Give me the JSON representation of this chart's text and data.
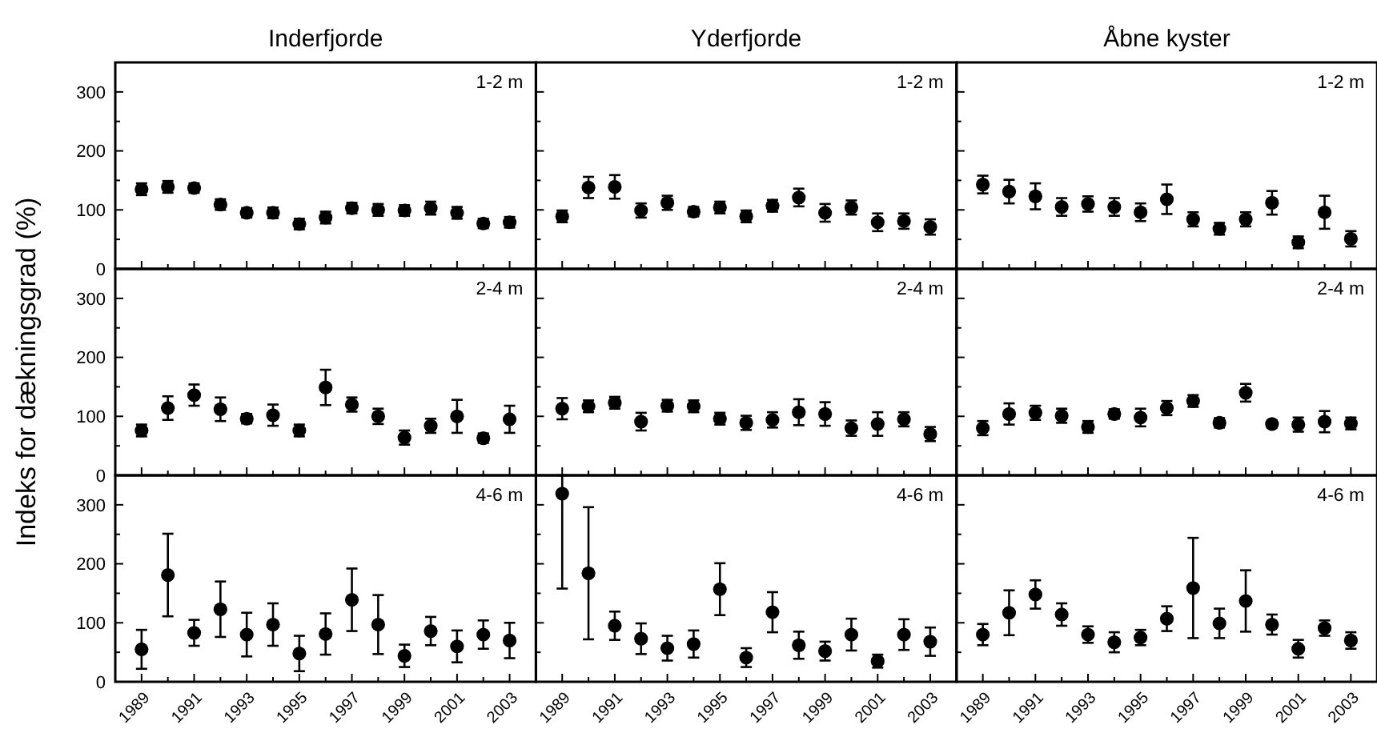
{
  "chart_data": [
    {
      "type": "scatter",
      "title": "Inderfjorde",
      "annotations": [
        "1-2 m"
      ],
      "x": [
        1989,
        1990,
        1991,
        1992,
        1993,
        1994,
        1995,
        1996,
        1997,
        1998,
        1999,
        2000,
        2001,
        2002,
        2003
      ],
      "color": "#000000",
      "marker": "circle",
      "tick_labels": "y",
      "values": [
        135,
        139,
        137,
        109,
        95,
        95,
        76,
        87,
        103,
        100,
        99,
        103,
        95,
        77,
        79
      ],
      "errors": [
        10,
        10,
        8,
        9,
        8,
        9,
        9,
        10,
        9,
        10,
        9,
        11,
        10,
        8,
        9
      ],
      "xlim": [
        1988,
        2004
      ],
      "xticks": [
        1989,
        {
          "value": 1990,
          "label": null
        },
        1991,
        {
          "value": 1992,
          "label": null
        },
        1993,
        {
          "value": 1994,
          "label": null
        },
        1995,
        {
          "value": 1996,
          "label": null
        },
        1997,
        {
          "value": 1998,
          "label": null
        },
        1999,
        {
          "value": 2000,
          "label": null
        },
        2001,
        {
          "value": 2002,
          "label": null
        },
        2003
      ],
      "ylim": [
        0,
        350
      ],
      "yticks": [
        0,
        {
          "value": 50,
          "label": null
        },
        100,
        {
          "value": 150,
          "label": null
        },
        200,
        {
          "value": 250,
          "label": null
        },
        300
      ]
    },
    {
      "type": "scatter",
      "title": "Yderfjorde",
      "annotations": [
        "1-2 m"
      ],
      "x": [
        1989,
        1990,
        1991,
        1992,
        1993,
        1994,
        1995,
        1996,
        1997,
        1998,
        1999,
        2000,
        2001,
        2002,
        2003
      ],
      "color": "#000000",
      "marker": "circle",
      "tick_labels": false,
      "values": [
        89,
        138,
        139,
        99,
        112,
        97,
        104,
        89,
        107,
        121,
        95,
        104,
        79,
        81,
        71
      ],
      "errors": [
        10,
        18,
        20,
        12,
        12,
        8,
        10,
        10,
        10,
        15,
        15,
        12,
        15,
        13,
        13
      ],
      "xlim": [
        1988,
        2004
      ],
      "xticks": [
        1989,
        {
          "value": 1990,
          "label": null
        },
        1991,
        {
          "value": 1992,
          "label": null
        },
        1993,
        {
          "value": 1994,
          "label": null
        },
        1995,
        {
          "value": 1996,
          "label": null
        },
        1997,
        {
          "value": 1998,
          "label": null
        },
        1999,
        {
          "value": 2000,
          "label": null
        },
        2001,
        {
          "value": 2002,
          "label": null
        },
        2003
      ],
      "ylim": [
        0,
        350
      ],
      "yticks": [
        0,
        {
          "value": 50,
          "label": null
        },
        100,
        {
          "value": 150,
          "label": null
        },
        200,
        {
          "value": 250,
          "label": null
        },
        300
      ]
    },
    {
      "type": "scatter",
      "title": "Åbne kyster",
      "annotations": [
        "1-2 m"
      ],
      "x": [
        1989,
        1990,
        1991,
        1992,
        1993,
        1994,
        1995,
        1996,
        1997,
        1998,
        1999,
        2000,
        2001,
        2002,
        2003
      ],
      "color": "#000000",
      "marker": "circle",
      "tick_labels": false,
      "values": [
        143,
        131,
        123,
        105,
        110,
        105,
        96,
        118,
        84,
        68,
        84,
        112,
        45,
        96,
        51
      ],
      "errors": [
        15,
        20,
        22,
        15,
        13,
        15,
        15,
        25,
        12,
        10,
        12,
        20,
        10,
        28,
        13
      ],
      "xlim": [
        1988,
        2004
      ],
      "xticks": [
        1989,
        {
          "value": 1990,
          "label": null
        },
        1991,
        {
          "value": 1992,
          "label": null
        },
        1993,
        {
          "value": 1994,
          "label": null
        },
        1995,
        {
          "value": 1996,
          "label": null
        },
        1997,
        {
          "value": 1998,
          "label": null
        },
        1999,
        {
          "value": 2000,
          "label": null
        },
        2001,
        {
          "value": 2002,
          "label": null
        },
        2003
      ],
      "ylim": [
        0,
        350
      ],
      "yticks": [
        0,
        {
          "value": 50,
          "label": null
        },
        100,
        {
          "value": 150,
          "label": null
        },
        200,
        {
          "value": 250,
          "label": null
        },
        300
      ]
    },
    {
      "type": "scatter",
      "annotations": [
        "2-4 m"
      ],
      "ylabel": "Indeks for dækningsgrad (%)",
      "x": [
        1989,
        1990,
        1991,
        1992,
        1993,
        1994,
        1995,
        1996,
        1997,
        1998,
        1999,
        2000,
        2001,
        2002,
        2003
      ],
      "color": "#000000",
      "marker": "circle",
      "tick_labels": "y",
      "values": [
        76,
        114,
        136,
        112,
        96,
        102,
        76,
        149,
        120,
        100,
        64,
        84,
        100,
        63,
        95
      ],
      "errors": [
        10,
        20,
        18,
        20,
        8,
        18,
        10,
        30,
        12,
        13,
        12,
        12,
        28,
        8,
        23
      ],
      "xlim": [
        1988,
        2004
      ],
      "xticks": [
        1989,
        {
          "value": 1990,
          "label": null
        },
        1991,
        {
          "value": 1992,
          "label": null
        },
        1993,
        {
          "value": 1994,
          "label": null
        },
        1995,
        {
          "value": 1996,
          "label": null
        },
        1997,
        {
          "value": 1998,
          "label": null
        },
        1999,
        {
          "value": 2000,
          "label": null
        },
        2001,
        {
          "value": 2002,
          "label": null
        },
        2003
      ],
      "ylim": [
        0,
        350
      ],
      "yticks": [
        0,
        {
          "value": 50,
          "label": null
        },
        100,
        {
          "value": 150,
          "label": null
        },
        200,
        {
          "value": 250,
          "label": null
        },
        300
      ]
    },
    {
      "type": "scatter",
      "annotations": [
        "2-4 m"
      ],
      "x": [
        1989,
        1990,
        1991,
        1992,
        1993,
        1994,
        1995,
        1996,
        1997,
        1998,
        1999,
        2000,
        2001,
        2002,
        2003
      ],
      "color": "#000000",
      "marker": "circle",
      "tick_labels": false,
      "values": [
        113,
        117,
        123,
        91,
        118,
        117,
        96,
        89,
        94,
        107,
        104,
        80,
        87,
        95,
        70
      ],
      "errors": [
        18,
        10,
        10,
        15,
        10,
        10,
        10,
        12,
        13,
        22,
        20,
        13,
        20,
        12,
        12
      ],
      "xlim": [
        1988,
        2004
      ],
      "xticks": [
        1989,
        {
          "value": 1990,
          "label": null
        },
        1991,
        {
          "value": 1992,
          "label": null
        },
        1993,
        {
          "value": 1994,
          "label": null
        },
        1995,
        {
          "value": 1996,
          "label": null
        },
        1997,
        {
          "value": 1998,
          "label": null
        },
        1999,
        {
          "value": 2000,
          "label": null
        },
        2001,
        {
          "value": 2002,
          "label": null
        },
        2003
      ],
      "ylim": [
        0,
        350
      ],
      "yticks": [
        0,
        {
          "value": 50,
          "label": null
        },
        100,
        {
          "value": 150,
          "label": null
        },
        200,
        {
          "value": 250,
          "label": null
        },
        300
      ]
    },
    {
      "type": "scatter",
      "annotations": [
        "2-4 m"
      ],
      "x": [
        1989,
        1990,
        1991,
        1992,
        1993,
        1994,
        1995,
        1996,
        1997,
        1998,
        1999,
        2000,
        2001,
        2002,
        2003
      ],
      "color": "#000000",
      "marker": "circle",
      "tick_labels": false,
      "values": [
        80,
        104,
        106,
        101,
        82,
        104,
        98,
        114,
        126,
        89,
        140,
        87,
        86,
        91,
        88
      ],
      "errors": [
        12,
        18,
        12,
        12,
        10,
        8,
        15,
        12,
        10,
        8,
        15,
        6,
        12,
        18,
        10
      ],
      "xlim": [
        1988,
        2004
      ],
      "xticks": [
        1989,
        {
          "value": 1990,
          "label": null
        },
        1991,
        {
          "value": 1992,
          "label": null
        },
        1993,
        {
          "value": 1994,
          "label": null
        },
        1995,
        {
          "value": 1996,
          "label": null
        },
        1997,
        {
          "value": 1998,
          "label": null
        },
        1999,
        {
          "value": 2000,
          "label": null
        },
        2001,
        {
          "value": 2002,
          "label": null
        },
        2003
      ],
      "ylim": [
        0,
        350
      ],
      "yticks": [
        0,
        {
          "value": 50,
          "label": null
        },
        100,
        {
          "value": 150,
          "label": null
        },
        200,
        {
          "value": 250,
          "label": null
        },
        300
      ]
    },
    {
      "type": "scatter",
      "annotations": [
        "4-6 m"
      ],
      "x": [
        1989,
        1990,
        1991,
        1992,
        1993,
        1994,
        1995,
        1996,
        1997,
        1998,
        1999,
        2000,
        2001,
        2002,
        2003
      ],
      "color": "#000000",
      "marker": "circle",
      "values": [
        55,
        181,
        83,
        123,
        80,
        97,
        48,
        81,
        139,
        97,
        44,
        86,
        60,
        80,
        70
      ],
      "errors": [
        33,
        70,
        22,
        47,
        37,
        36,
        30,
        35,
        53,
        50,
        19,
        24,
        27,
        24,
        30
      ],
      "xlim": [
        1988,
        2004
      ],
      "xticks": [
        1989,
        {
          "value": 1990,
          "label": null
        },
        1991,
        {
          "value": 1992,
          "label": null
        },
        1993,
        {
          "value": 1994,
          "label": null
        },
        1995,
        {
          "value": 1996,
          "label": null
        },
        1997,
        {
          "value": 1998,
          "label": null
        },
        1999,
        {
          "value": 2000,
          "label": null
        },
        2001,
        {
          "value": 2002,
          "label": null
        },
        2003
      ],
      "ylim": [
        0,
        350
      ],
      "yticks": [
        0,
        {
          "value": 50,
          "label": null
        },
        100,
        {
          "value": 150,
          "label": null
        },
        200,
        {
          "value": 250,
          "label": null
        },
        300
      ]
    },
    {
      "type": "scatter",
      "annotations": [
        "4-6 m"
      ],
      "x": [
        1989,
        1990,
        1991,
        1992,
        1993,
        1994,
        1995,
        1996,
        1997,
        1998,
        1999,
        2000,
        2001,
        2002,
        2003
      ],
      "color": "#000000",
      "marker": "circle",
      "tick_labels": "x",
      "values": [
        319,
        184,
        95,
        73,
        57,
        64,
        157,
        41,
        118,
        62,
        52,
        80,
        35,
        80,
        68
      ],
      "errors": [
        [
          158,
          350
        ],
        112,
        24,
        26,
        21,
        23,
        44,
        16,
        34,
        23,
        16,
        27,
        11,
        26,
        24
      ],
      "xlim": [
        1988,
        2004
      ],
      "xticks": [
        1989,
        {
          "value": 1990,
          "label": null
        },
        1991,
        {
          "value": 1992,
          "label": null
        },
        1993,
        {
          "value": 1994,
          "label": null
        },
        1995,
        {
          "value": 1996,
          "label": null
        },
        1997,
        {
          "value": 1998,
          "label": null
        },
        1999,
        {
          "value": 2000,
          "label": null
        },
        2001,
        {
          "value": 2002,
          "label": null
        },
        2003
      ],
      "ylim": [
        0,
        350
      ],
      "yticks": [
        0,
        {
          "value": 50,
          "label": null
        },
        100,
        {
          "value": 150,
          "label": null
        },
        200,
        {
          "value": 250,
          "label": null
        },
        300
      ]
    },
    {
      "type": "scatter",
      "annotations": [
        "4-6 m"
      ],
      "x": [
        1989,
        1990,
        1991,
        1992,
        1993,
        1994,
        1995,
        1996,
        1997,
        1998,
        1999,
        2000,
        2001,
        2002,
        2003
      ],
      "color": "#000000",
      "marker": "circle",
      "tick_labels": "x",
      "values": [
        80,
        117,
        148,
        114,
        80,
        67,
        75,
        107,
        159,
        99,
        137,
        97,
        56,
        91,
        70
      ],
      "errors": [
        18,
        38,
        24,
        19,
        14,
        17,
        13,
        21,
        85,
        25,
        52,
        17,
        15,
        13,
        14
      ],
      "xlim": [
        1988,
        2004
      ],
      "xticks": [
        1989,
        {
          "value": 1990,
          "label": null
        },
        1991,
        {
          "value": 1992,
          "label": null
        },
        1993,
        {
          "value": 1994,
          "label": null
        },
        1995,
        {
          "value": 1996,
          "label": null
        },
        1997,
        {
          "value": 1998,
          "label": null
        },
        1999,
        {
          "value": 2000,
          "label": null
        },
        2001,
        {
          "value": 2002,
          "label": null
        },
        2003
      ],
      "ylim": [
        0,
        350
      ],
      "yticks": [
        0,
        {
          "value": 50,
          "label": null
        },
        100,
        {
          "value": 150,
          "label": null
        },
        200,
        {
          "value": 250,
          "label": null
        },
        300
      ]
    }
  ]
}
